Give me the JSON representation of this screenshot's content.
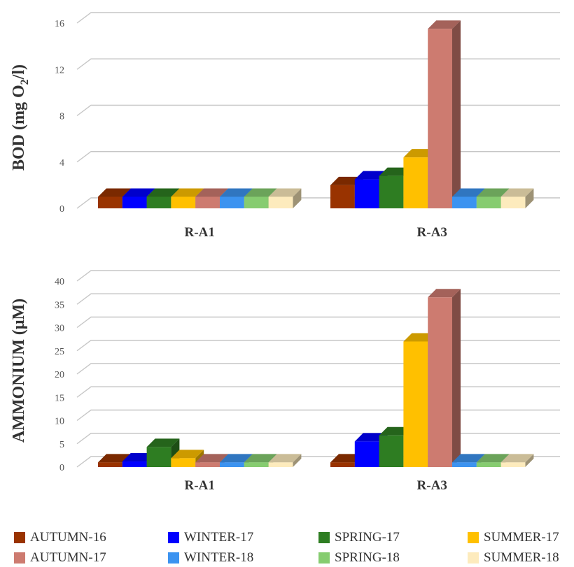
{
  "colors": {
    "grid": "#c6c6c6",
    "axis_text": "#555555",
    "title_text": "#333333"
  },
  "chart_data": [
    {
      "type": "bar",
      "style": "3d-clustered-column",
      "ylabel": "BOD (mg O",
      "ylabel_sub": "2",
      "ylabel_tail": "/l)",
      "ylim": [
        0,
        16
      ],
      "yticks": [
        0,
        4,
        8,
        12,
        16
      ],
      "grid": true,
      "categories": [
        "R-A1",
        "R-A3"
      ],
      "series": [
        {
          "name": "AUTUMN-16",
          "color": "#993300",
          "values": [
            1,
            2
          ]
        },
        {
          "name": "WINTER-17",
          "color": "#0000ff",
          "values": [
            1,
            2.5
          ]
        },
        {
          "name": "SPRING-17",
          "color": "#2e7d22",
          "values": [
            1,
            2.8
          ]
        },
        {
          "name": "SUMMER-17",
          "color": "#ffc000",
          "values": [
            1,
            4.4
          ]
        },
        {
          "name": "AUTUMN-17",
          "color": "#cd7b70",
          "values": [
            1,
            15.5
          ]
        },
        {
          "name": "WINTER-18",
          "color": "#3c93f0",
          "values": [
            1,
            1
          ]
        },
        {
          "name": "SPRING-18",
          "color": "#86cc70",
          "values": [
            1,
            1
          ]
        },
        {
          "name": "SUMMER-18",
          "color": "#fdebbd",
          "values": [
            1,
            1
          ]
        }
      ]
    },
    {
      "type": "bar",
      "style": "3d-clustered-column",
      "ylabel": "AMMONIUM (μM)",
      "ylim": [
        0,
        40
      ],
      "yticks": [
        0,
        5,
        10,
        15,
        20,
        25,
        30,
        35,
        40
      ],
      "grid": true,
      "categories": [
        "R-A1",
        "R-A3"
      ],
      "series": [
        {
          "name": "AUTUMN-16",
          "color": "#993300",
          "values": [
            1,
            1
          ]
        },
        {
          "name": "WINTER-17",
          "color": "#0000ff",
          "values": [
            1.2,
            5.5
          ]
        },
        {
          "name": "SPRING-17",
          "color": "#2e7d22",
          "values": [
            4.3,
            6.8
          ]
        },
        {
          "name": "SUMMER-17",
          "color": "#ffc000",
          "values": [
            1.9,
            27
          ]
        },
        {
          "name": "AUTUMN-17",
          "color": "#cd7b70",
          "values": [
            1,
            36.5
          ]
        },
        {
          "name": "WINTER-18",
          "color": "#3c93f0",
          "values": [
            1,
            1
          ]
        },
        {
          "name": "SPRING-18",
          "color": "#86cc70",
          "values": [
            1,
            1
          ]
        },
        {
          "name": "SUMMER-18",
          "color": "#fdebbd",
          "values": [
            1,
            1
          ]
        }
      ]
    }
  ],
  "legend": {
    "placement": "bottom",
    "items": [
      {
        "label": "AUTUMN-16",
        "color": "#993300"
      },
      {
        "label": "WINTER-17",
        "color": "#0000ff"
      },
      {
        "label": "SPRING-17",
        "color": "#2e7d22"
      },
      {
        "label": "SUMMER-17",
        "color": "#ffc000"
      },
      {
        "label": "AUTUMN-17",
        "color": "#cd7b70"
      },
      {
        "label": "WINTER-18",
        "color": "#3c93f0"
      },
      {
        "label": "SPRING-18",
        "color": "#86cc70"
      },
      {
        "label": "SUMMER-18",
        "color": "#fdebbd"
      }
    ]
  }
}
